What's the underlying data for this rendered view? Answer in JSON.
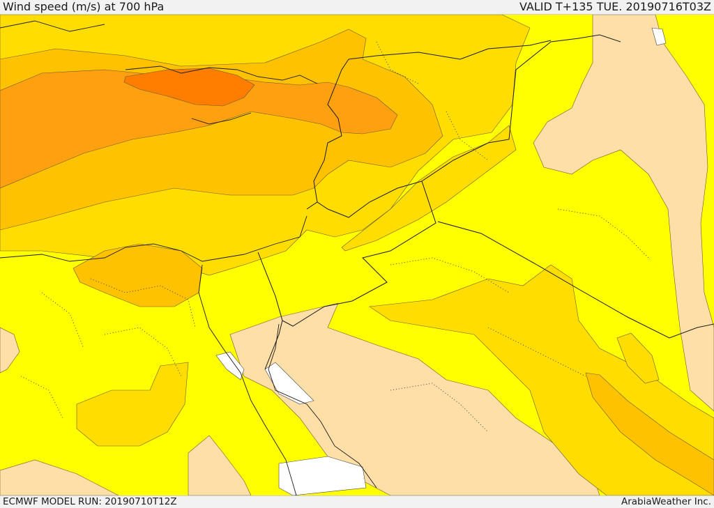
{
  "header": {
    "title": "Wind speed (m/s) at 700 hPa",
    "valid": "VALID T+135 TUE. 20190716T03Z"
  },
  "footer": {
    "model_run": "ECMWF MODEL RUN: 20190710T12Z",
    "credit": "ArabiaWeather Inc."
  },
  "colors": {
    "band_calm": "#ffffff",
    "band_light": "#ffdfa8",
    "band_base": "#ffff00",
    "band_moderate": "#ffdd00",
    "band_fresh": "#ffc200",
    "band_strong": "#ffa010",
    "band_max": "#ff7e00"
  }
}
